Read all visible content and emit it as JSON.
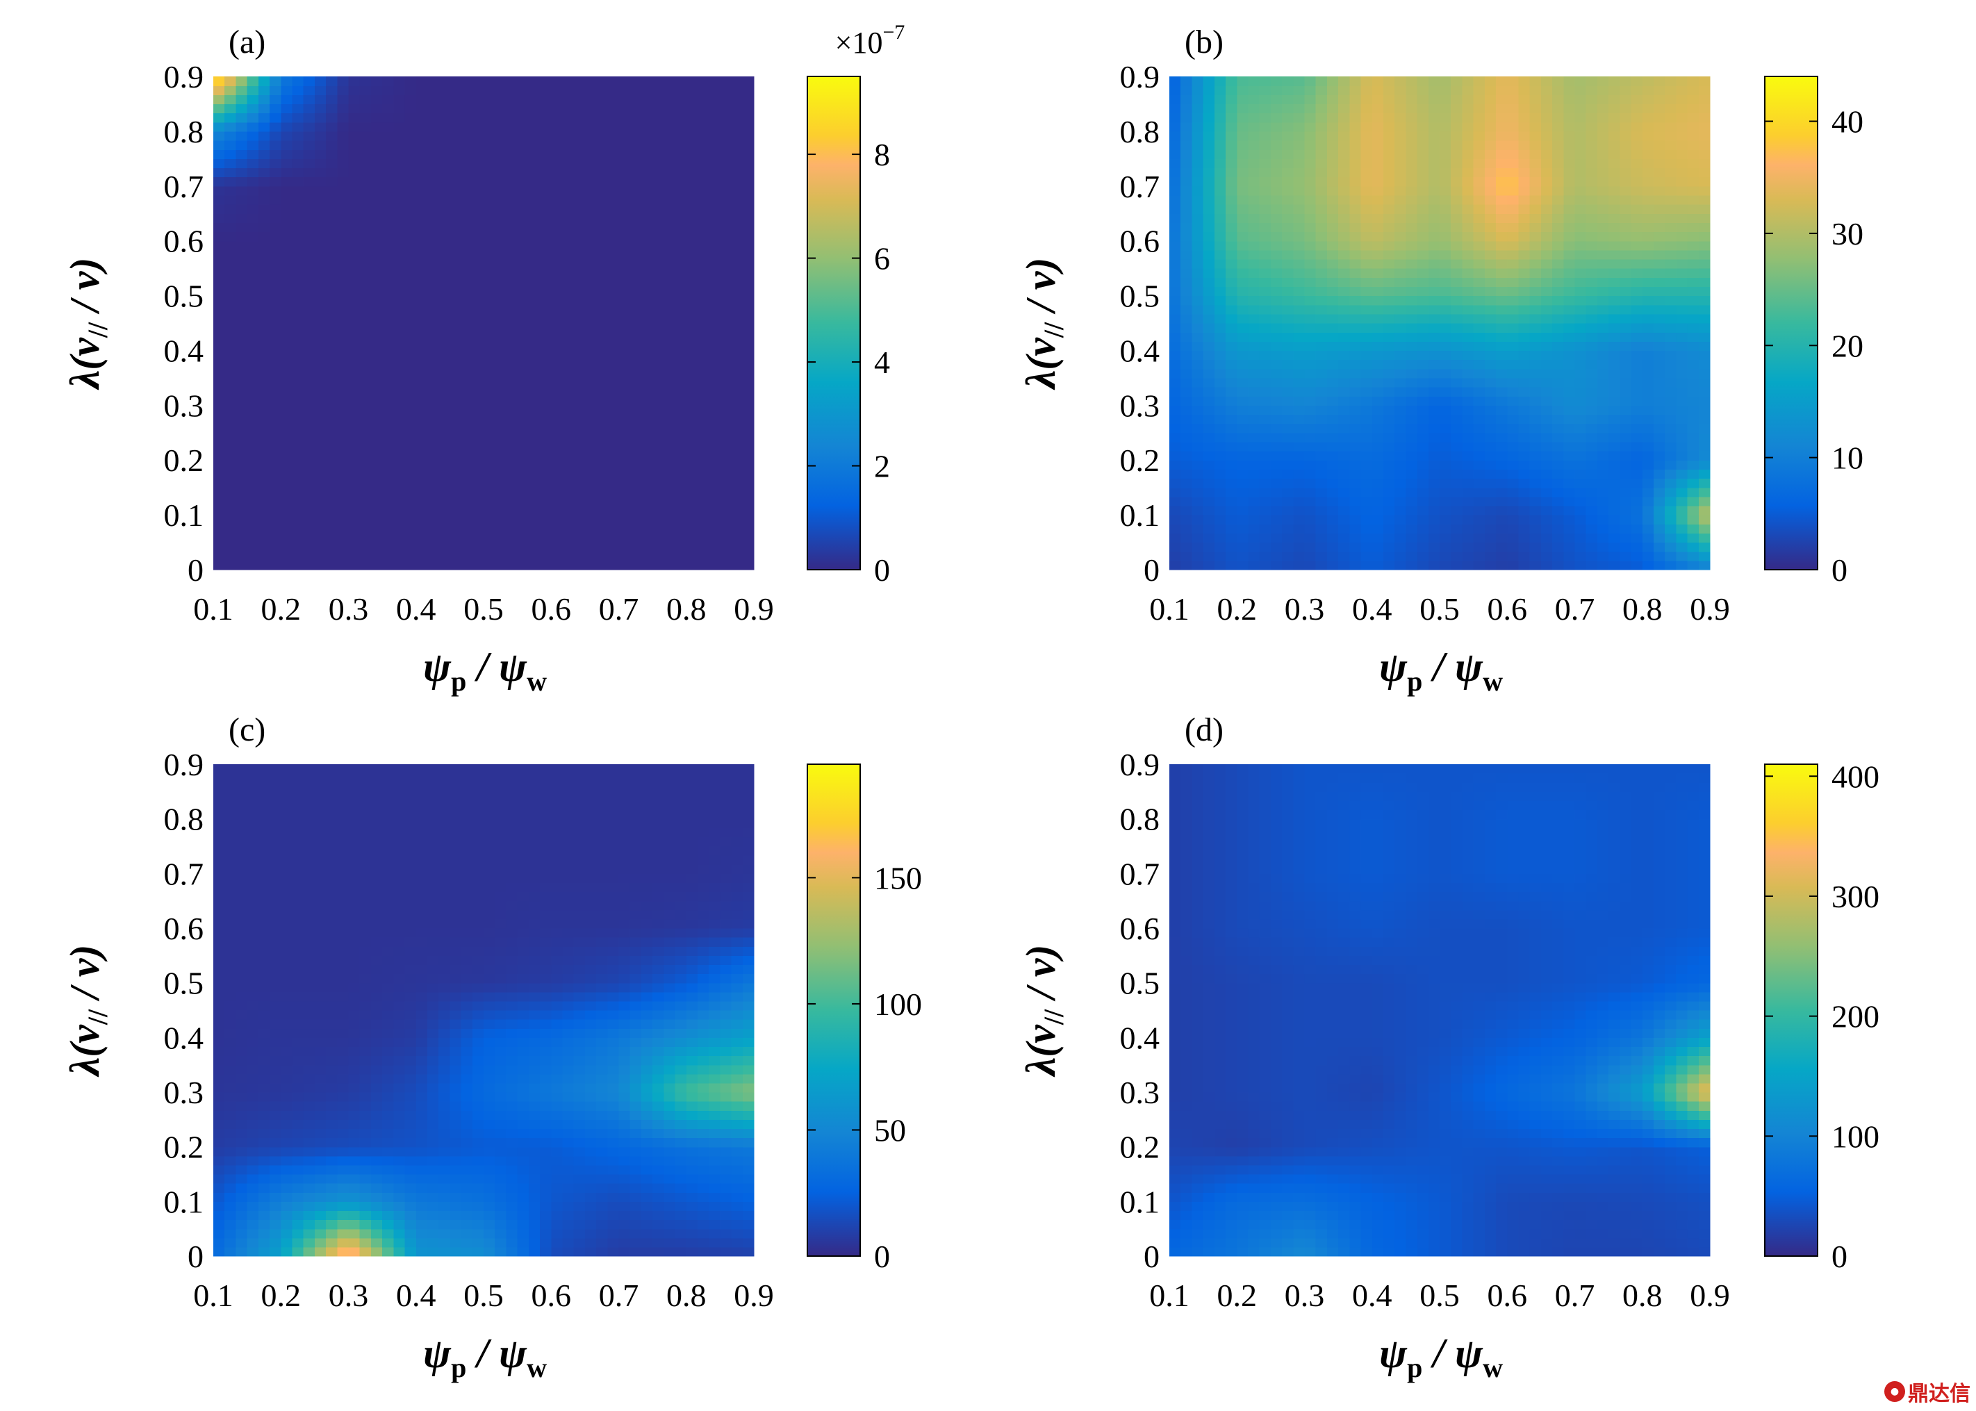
{
  "axis_labels": {
    "x_main": "ψ",
    "x_sub1": "p",
    "x_sep": " / ",
    "x_main2": "ψ",
    "x_sub2": "w",
    "y_main": "λ(v",
    "y_sub": "//",
    "y_tail": " / v)"
  },
  "watermark": {
    "text": "鼎达信",
    "logo": "icon"
  },
  "chart_data": [
    {
      "type": "heatmap",
      "panel_label": "(a)",
      "xlabel": "ψp / ψw",
      "ylabel": "λ(v// / v)",
      "x": [
        0.1,
        0.2,
        0.3,
        0.4,
        0.5,
        0.6,
        0.7,
        0.8,
        0.9
      ],
      "y": [
        0,
        0.1,
        0.2,
        0.3,
        0.4,
        0.5,
        0.6,
        0.7,
        0.8,
        0.9
      ],
      "xticks": [
        "0.1",
        "0.2",
        "0.3",
        "0.4",
        "0.5",
        "0.6",
        "0.7",
        "0.8",
        "0.9"
      ],
      "yticks": [
        "0",
        "0.1",
        "0.2",
        "0.3",
        "0.4",
        "0.5",
        "0.6",
        "0.7",
        "0.8",
        "0.9"
      ],
      "xlim": [
        0.1,
        0.9
      ],
      "ylim": [
        0,
        0.9
      ],
      "colorbar": {
        "min": 0,
        "max": 9.5,
        "ticks": [
          0,
          2,
          4,
          6,
          8
        ],
        "tick_labels": [
          "0",
          "2",
          "4",
          "6",
          "8"
        ],
        "exponent_base": "×10",
        "exponent_power": "−7"
      },
      "z": [
        [
          0,
          0,
          0,
          0,
          0,
          0,
          0,
          0,
          0
        ],
        [
          0,
          0,
          0,
          0,
          0,
          0,
          0,
          0,
          0
        ],
        [
          0,
          0,
          0,
          0,
          0,
          0,
          0,
          0,
          0
        ],
        [
          0,
          0,
          0,
          0,
          0,
          0,
          0,
          0,
          0
        ],
        [
          0,
          0,
          0,
          0,
          0,
          0,
          0,
          0,
          0
        ],
        [
          0,
          0,
          0,
          0,
          0,
          0,
          0,
          0,
          0
        ],
        [
          0,
          0,
          0,
          0,
          0,
          0,
          0,
          0,
          0
        ],
        [
          0.2,
          0,
          0,
          0,
          0,
          0,
          0,
          0,
          0
        ],
        [
          2.5,
          0.6,
          0,
          0,
          0,
          0,
          0,
          0,
          0
        ],
        [
          9.5,
          2.0,
          0.2,
          0,
          0,
          0,
          0,
          0,
          0
        ]
      ]
    },
    {
      "type": "heatmap",
      "panel_label": "(b)",
      "xlabel": "ψp / ψw",
      "ylabel": "λ(v// / v)",
      "x": [
        0.1,
        0.2,
        0.3,
        0.4,
        0.5,
        0.6,
        0.7,
        0.8,
        0.9
      ],
      "y": [
        0,
        0.1,
        0.2,
        0.3,
        0.4,
        0.5,
        0.6,
        0.7,
        0.8,
        0.9
      ],
      "xticks": [
        "0.1",
        "0.2",
        "0.3",
        "0.4",
        "0.5",
        "0.6",
        "0.7",
        "0.8",
        "0.9"
      ],
      "yticks": [
        "0",
        "0.1",
        "0.2",
        "0.3",
        "0.4",
        "0.5",
        "0.6",
        "0.7",
        "0.8",
        "0.9"
      ],
      "xlim": [
        0.1,
        0.9
      ],
      "ylim": [
        0,
        0.9
      ],
      "colorbar": {
        "min": 0,
        "max": 44,
        "ticks": [
          0,
          10,
          20,
          30,
          40
        ],
        "tick_labels": [
          "0",
          "10",
          "20",
          "30",
          "40"
        ]
      },
      "z": [
        [
          2,
          4,
          3,
          5,
          3,
          2,
          4,
          5,
          10
        ],
        [
          3,
          5,
          4,
          6,
          4,
          3,
          5,
          8,
          32
        ],
        [
          5,
          6,
          6,
          7,
          5,
          6,
          8,
          6,
          12
        ],
        [
          6,
          10,
          11,
          9,
          6,
          9,
          12,
          10,
          11
        ],
        [
          7,
          14,
          15,
          14,
          13,
          15,
          13,
          10,
          12
        ],
        [
          8,
          20,
          22,
          24,
          23,
          25,
          22,
          20,
          20
        ],
        [
          8,
          24,
          26,
          31,
          28,
          33,
          27,
          28,
          27
        ],
        [
          7,
          26,
          28,
          34,
          30,
          38,
          30,
          32,
          33
        ],
        [
          6,
          25,
          27,
          34,
          30,
          35,
          30,
          33,
          34
        ],
        [
          5,
          23,
          24,
          33,
          29,
          34,
          29,
          31,
          33
        ]
      ]
    },
    {
      "type": "heatmap",
      "panel_label": "(c)",
      "xlabel": "ψp / ψw",
      "ylabel": "λ(v// / v)",
      "x": [
        0.1,
        0.2,
        0.3,
        0.4,
        0.5,
        0.6,
        0.7,
        0.8,
        0.9
      ],
      "y": [
        0,
        0.1,
        0.2,
        0.3,
        0.4,
        0.5,
        0.6,
        0.7,
        0.8,
        0.9
      ],
      "xticks": [
        "0.1",
        "0.2",
        "0.3",
        "0.4",
        "0.5",
        "0.6",
        "0.7",
        "0.8",
        "0.9"
      ],
      "yticks": [
        "0",
        "0.1",
        "0.2",
        "0.3",
        "0.4",
        "0.5",
        "0.6",
        "0.7",
        "0.8",
        "0.9"
      ],
      "xlim": [
        0.1,
        0.9
      ],
      "ylim": [
        0,
        0.9
      ],
      "colorbar": {
        "min": 0,
        "max": 195,
        "ticks": [
          0,
          50,
          100,
          150
        ],
        "tick_labels": [
          "0",
          "50",
          "100",
          "150"
        ]
      },
      "z": [
        [
          30,
          70,
          180,
          60,
          55,
          15,
          8,
          8,
          10
        ],
        [
          20,
          45,
          60,
          40,
          35,
          20,
          15,
          20,
          25
        ],
        [
          8,
          12,
          15,
          18,
          22,
          22,
          28,
          35,
          40
        ],
        [
          5,
          6,
          8,
          15,
          30,
          40,
          50,
          100,
          120
        ],
        [
          4,
          5,
          5,
          8,
          25,
          30,
          40,
          55,
          70
        ],
        [
          4,
          4,
          4,
          5,
          6,
          8,
          12,
          22,
          40
        ],
        [
          4,
          4,
          4,
          4,
          4,
          5,
          5,
          6,
          8
        ],
        [
          4,
          4,
          4,
          4,
          4,
          4,
          4,
          4,
          5
        ],
        [
          4,
          4,
          4,
          4,
          4,
          4,
          4,
          4,
          4
        ],
        [
          4,
          4,
          4,
          4,
          4,
          4,
          4,
          4,
          4
        ]
      ]
    },
    {
      "type": "heatmap",
      "panel_label": "(d)",
      "xlabel": "ψp / ψw",
      "ylabel": "λ(v// / v)",
      "x": [
        0.1,
        0.2,
        0.3,
        0.4,
        0.5,
        0.6,
        0.7,
        0.8,
        0.9
      ],
      "y": [
        0,
        0.1,
        0.2,
        0.3,
        0.4,
        0.5,
        0.6,
        0.7,
        0.8,
        0.9
      ],
      "xticks": [
        "0.1",
        "0.2",
        "0.3",
        "0.4",
        "0.5",
        "0.6",
        "0.7",
        "0.8",
        "0.9"
      ],
      "yticks": [
        "0",
        "0.1",
        "0.2",
        "0.3",
        "0.4",
        "0.5",
        "0.6",
        "0.7",
        "0.8",
        "0.9"
      ],
      "xlim": [
        0.1,
        0.9
      ],
      "ylim": [
        0,
        0.9
      ],
      "colorbar": {
        "min": 0,
        "max": 410,
        "ticks": [
          0,
          100,
          200,
          300,
          400
        ],
        "tick_labels": [
          "0",
          "100",
          "200",
          "300",
          "400"
        ]
      },
      "z": [
        [
          60,
          80,
          110,
          60,
          45,
          30,
          25,
          25,
          30
        ],
        [
          40,
          65,
          70,
          55,
          45,
          30,
          28,
          30,
          35
        ],
        [
          25,
          20,
          30,
          35,
          40,
          40,
          45,
          40,
          50
        ],
        [
          20,
          25,
          30,
          25,
          40,
          60,
          80,
          140,
          330
        ],
        [
          20,
          25,
          30,
          30,
          35,
          45,
          55,
          80,
          150
        ],
        [
          20,
          25,
          30,
          30,
          35,
          35,
          40,
          45,
          60
        ],
        [
          20,
          30,
          35,
          40,
          35,
          35,
          40,
          40,
          45
        ],
        [
          20,
          30,
          40,
          45,
          40,
          45,
          45,
          40,
          45
        ],
        [
          20,
          30,
          40,
          45,
          40,
          45,
          45,
          40,
          45
        ],
        [
          20,
          30,
          40,
          40,
          40,
          40,
          40,
          40,
          40
        ]
      ]
    }
  ]
}
